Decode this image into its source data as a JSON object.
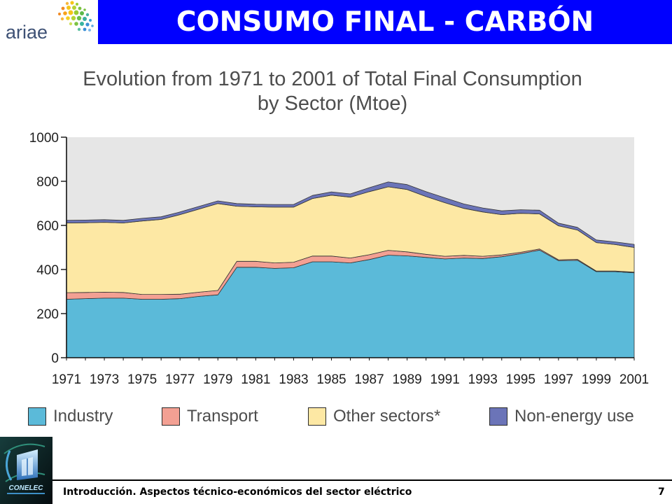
{
  "header": {
    "title": "CONSUMO FINAL - CARBÓN",
    "logo_text": "ariae",
    "banner_color": "#0000ff"
  },
  "chart_data": {
    "type": "area",
    "stacked": true,
    "title": "Evolution from 1971 to 2001 of Total Final Consumption",
    "subtitle": "by Sector (Mtoe)",
    "xlabel": "",
    "ylabel": "",
    "x": [
      1971,
      1972,
      1973,
      1974,
      1975,
      1976,
      1977,
      1978,
      1979,
      1980,
      1981,
      1982,
      1983,
      1984,
      1985,
      1986,
      1987,
      1988,
      1989,
      1990,
      1991,
      1992,
      1993,
      1994,
      1995,
      1996,
      1997,
      1998,
      1999,
      2000,
      2001
    ],
    "xlim": [
      1971,
      2001
    ],
    "ylim": [
      0,
      1000
    ],
    "yticks": [
      0,
      200,
      400,
      600,
      800,
      1000
    ],
    "xticks": [
      "1971",
      "1973",
      "1975",
      "1977",
      "1979",
      "1981",
      "1983",
      "1985",
      "1987",
      "1989",
      "1991",
      "1993",
      "1995",
      "1997",
      "1999",
      "2001"
    ],
    "grid": false,
    "legend": "bottom",
    "plot_background": "#e6e6e6",
    "series": [
      {
        "name": "Industry",
        "color": "#5bbad9",
        "values": [
          265,
          268,
          270,
          270,
          265,
          265,
          268,
          278,
          285,
          410,
          410,
          405,
          408,
          435,
          435,
          430,
          445,
          465,
          462,
          455,
          448,
          452,
          450,
          458,
          472,
          488,
          440,
          442,
          390,
          390,
          385
        ]
      },
      {
        "name": "Transport",
        "color": "#f3a093",
        "values": [
          30,
          28,
          27,
          26,
          22,
          22,
          20,
          19,
          20,
          27,
          27,
          25,
          25,
          26,
          26,
          22,
          22,
          22,
          18,
          14,
          12,
          12,
          10,
          8,
          6,
          5,
          4,
          4,
          3,
          3,
          3
        ]
      },
      {
        "name": "Other sectors*",
        "color": "#fde8a4",
        "values": [
          316,
          316,
          317,
          315,
          333,
          340,
          361,
          377,
          394,
          250,
          247,
          253,
          250,
          261,
          276,
          276,
          286,
          288,
          283,
          262,
          243,
          213,
          201,
          183,
          177,
          159,
          154,
          133,
          129,
          120,
          112
        ]
      },
      {
        "name": "Non-energy use",
        "color": "#6b74b8",
        "values": [
          12,
          12,
          12,
          12,
          12,
          12,
          12,
          12,
          12,
          12,
          12,
          12,
          12,
          14,
          15,
          15,
          18,
          22,
          22,
          22,
          22,
          20,
          18,
          17,
          16,
          17,
          12,
          12,
          12,
          12,
          14
        ]
      }
    ]
  },
  "footer": {
    "text": "Introducción. Aspectos técnico-económicos del sector eléctrico",
    "page": "7",
    "logo_text": "CONELEC"
  }
}
